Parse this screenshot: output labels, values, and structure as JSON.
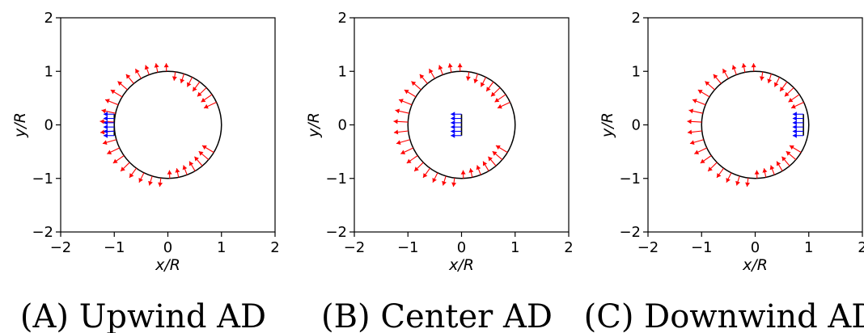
{
  "chart_data": [
    {
      "type": "scatter",
      "caption": "(A) Upwind AD",
      "xlabel": "x/R",
      "ylabel": "y/R",
      "xlim": [
        -2,
        2
      ],
      "ylim": [
        -2,
        2
      ],
      "xticks": [
        "−2",
        "−1",
        "0",
        "1",
        "2"
      ],
      "yticks": [
        "−2",
        "−1",
        "0",
        "1",
        "2"
      ],
      "grid": false,
      "circle": {
        "cx": 0,
        "cy": 0,
        "r": 1,
        "color": "#000000"
      },
      "disk": {
        "x": -1,
        "y_min": -0.2,
        "y_max": 0.2,
        "color": "#0000ff"
      },
      "series": [
        {
          "values": "pressure-vectors-on-cylinder",
          "color": "#ff0000"
        },
        {
          "values": "disk-thrust-vectors",
          "color": "#0000ff"
        }
      ]
    },
    {
      "type": "scatter",
      "caption": "(B) Center AD",
      "xlabel": "x/R",
      "ylabel": "y/R",
      "xlim": [
        -2,
        2
      ],
      "ylim": [
        -2,
        2
      ],
      "xticks": [
        "−2",
        "−1",
        "0",
        "1",
        "2"
      ],
      "yticks": [
        "−2",
        "−1",
        "0",
        "1",
        "2"
      ],
      "grid": false,
      "circle": {
        "cx": 0,
        "cy": 0,
        "r": 1,
        "color": "#000000"
      },
      "disk": {
        "x": 0,
        "y_min": -0.2,
        "y_max": 0.2,
        "color": "#0000ff"
      },
      "series": [
        {
          "values": "pressure-vectors-on-cylinder",
          "color": "#ff0000"
        },
        {
          "values": "disk-thrust-vectors",
          "color": "#0000ff"
        }
      ]
    },
    {
      "type": "scatter",
      "caption": "(C) Downwind AD",
      "xlabel": "x/R",
      "ylabel": "y/R",
      "xlim": [
        -2,
        2
      ],
      "ylim": [
        -2,
        2
      ],
      "xticks": [
        "−2",
        "−1",
        "0",
        "1",
        "2"
      ],
      "yticks": [
        "−2",
        "−1",
        "0",
        "1",
        "2"
      ],
      "grid": false,
      "circle": {
        "cx": 0,
        "cy": 0,
        "r": 1,
        "color": "#000000"
      },
      "disk": {
        "x": 0.9,
        "y_min": -0.2,
        "y_max": 0.2,
        "color": "#0000ff"
      },
      "series": [
        {
          "values": "pressure-vectors-on-cylinder",
          "color": "#ff0000"
        },
        {
          "values": "disk-thrust-vectors",
          "color": "#0000ff"
        }
      ]
    }
  ]
}
